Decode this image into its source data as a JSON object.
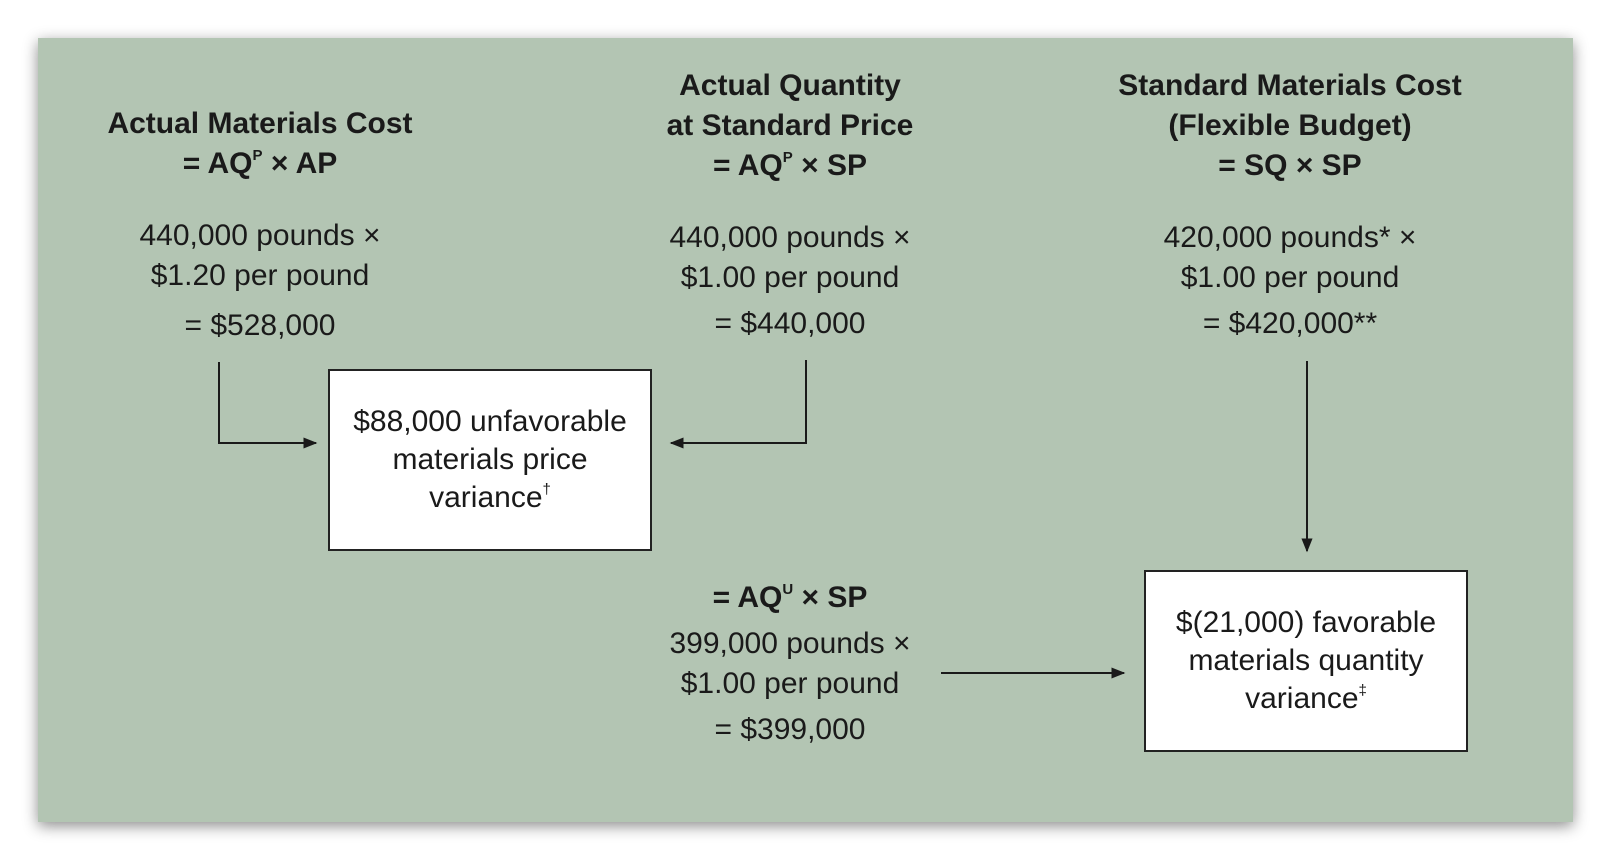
{
  "columns": [
    {
      "title_lines": [
        "Actual Materials Cost"
      ],
      "formula": {
        "lead": "= AQ",
        "sup": "P",
        "rest": " × AP"
      },
      "calc_lines": [
        "440,000 pounds ×",
        "$1.20 per pound"
      ],
      "result": "= $528,000"
    },
    {
      "title_lines": [
        "Actual Quantity",
        "at Standard Price"
      ],
      "formula": {
        "lead": "= AQ",
        "sup": "P",
        "rest": " × SP"
      },
      "calc_lines": [
        "440,000 pounds ×",
        "$1.00 per pound"
      ],
      "result": "= $440,000"
    },
    {
      "title_lines": [
        "Standard Materials Cost",
        "(Flexible Budget)"
      ],
      "formula": {
        "lead": "= SQ × SP",
        "sup": "",
        "rest": ""
      },
      "calc_lines": [
        "420,000 pounds* ×",
        "$1.00 per pound"
      ],
      "result": "= $420,000**"
    }
  ],
  "used_column": {
    "formula": {
      "lead": "= AQ",
      "sup": "U",
      "rest": " × SP"
    },
    "calc_lines": [
      "399,000 pounds ×",
      "$1.00 per pound"
    ],
    "result": "= $399,000"
  },
  "price_variance": {
    "lines": [
      "$88,000 unfavorable",
      "materials price"
    ],
    "last": "variance",
    "mark": "†"
  },
  "quantity_variance": {
    "lines": [
      "$(21,000) favorable",
      "materials quantity"
    ],
    "last": "variance",
    "mark": "‡"
  }
}
